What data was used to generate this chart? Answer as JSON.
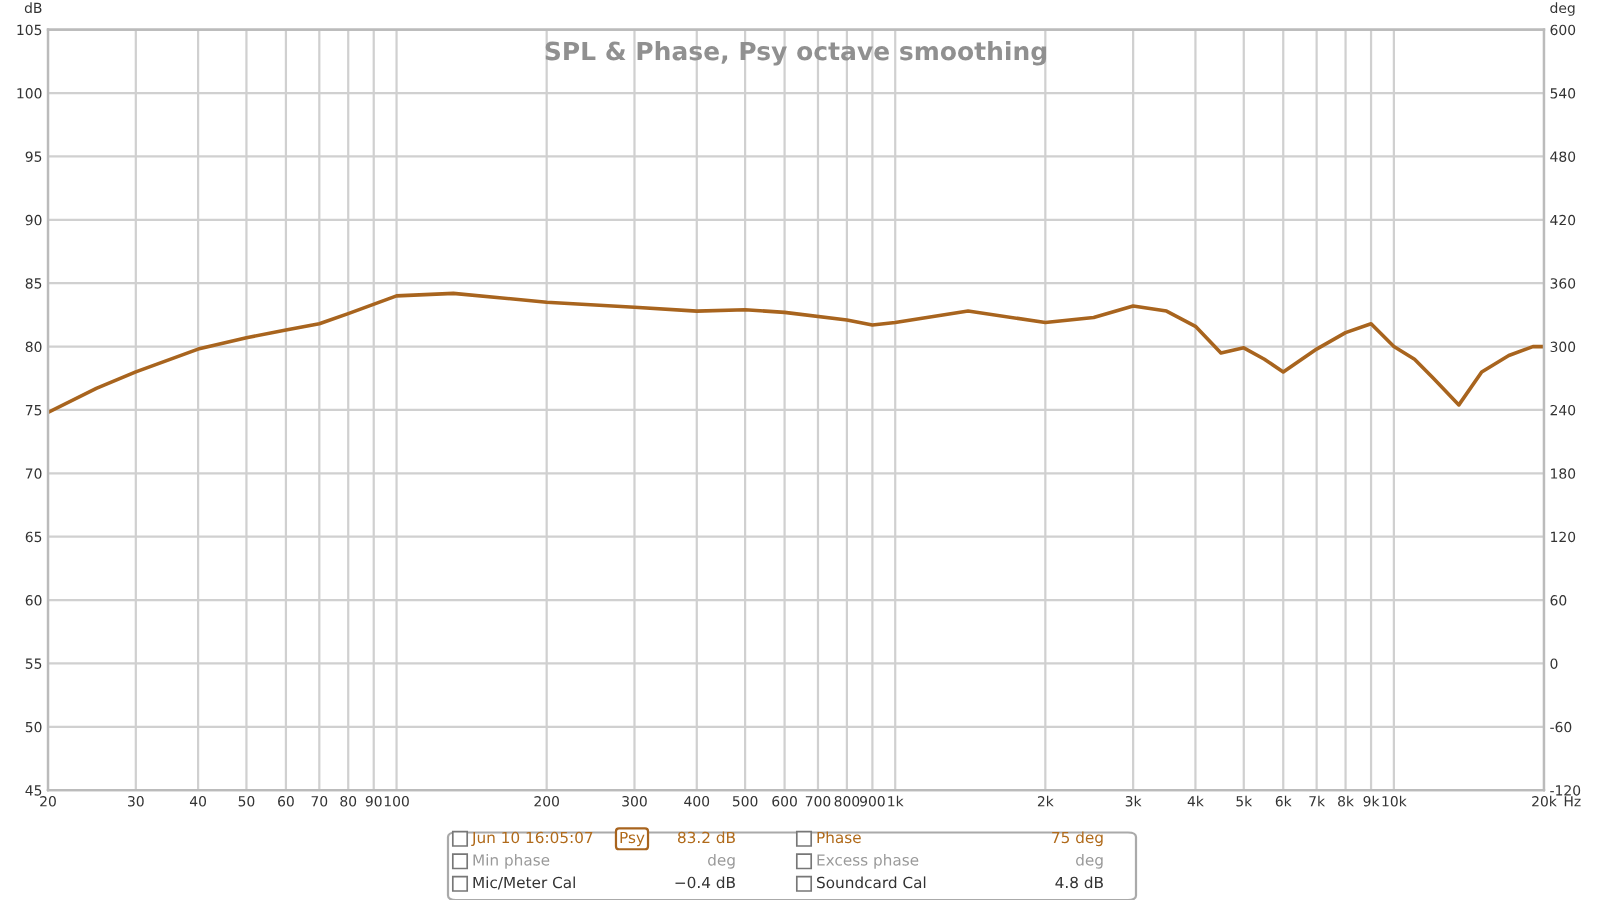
{
  "chart_data": {
    "type": "line",
    "title": "SPL & Phase, Psy octave smoothing",
    "ylabel": "dB",
    "y2label": "deg",
    "series": [
      {
        "color": "#a8641e",
        "x": [
          20,
          25,
          30,
          40,
          50,
          60,
          70,
          80,
          100,
          130,
          200,
          300,
          400,
          500,
          600,
          800,
          900,
          1000,
          1400,
          2000,
          2500,
          3000,
          3500,
          4000,
          4500,
          5000,
          5500,
          6000,
          7000,
          8000,
          9000,
          10000,
          11000,
          12000,
          13500,
          15000,
          17000,
          19000,
          20000
        ],
        "values": [
          74.8,
          76.7,
          78.0,
          79.8,
          80.7,
          81.3,
          81.8,
          82.6,
          84.0,
          84.2,
          83.5,
          83.1,
          82.8,
          82.9,
          82.7,
          82.1,
          81.7,
          81.9,
          82.8,
          81.9,
          82.3,
          83.2,
          82.8,
          81.6,
          79.5,
          79.9,
          79.0,
          78.0,
          79.8,
          81.1,
          81.8,
          80.0,
          79.0,
          77.5,
          75.4,
          78.0,
          79.3,
          80.0,
          80.0
        ]
      }
    ],
    "log": "x",
    "xlim": [
      20,
      20000
    ],
    "xticks": [
      20,
      30,
      40,
      50,
      60,
      70,
      80,
      90,
      100,
      200,
      300,
      400,
      500,
      600,
      700,
      800,
      900,
      {
        "value": 1000,
        "label": "1k"
      },
      {
        "value": 2000,
        "label": "2k"
      },
      {
        "value": 3000,
        "label": "3k"
      },
      {
        "value": 4000,
        "label": "4k"
      },
      {
        "value": 5000,
        "label": "5k"
      },
      {
        "value": 6000,
        "label": "6k"
      },
      {
        "value": 7000,
        "label": "7k"
      },
      {
        "value": 8000,
        "label": "8k"
      },
      {
        "value": 9000,
        "label": "9k"
      },
      {
        "value": 10000,
        "label": "10k"
      },
      {
        "value": 20000,
        "label": "20k"
      }
    ],
    "xlabel": "Hz",
    "ylim": [
      45,
      105
    ],
    "yticks": [
      45,
      50,
      55,
      60,
      65,
      70,
      75,
      80,
      85,
      90,
      95,
      100,
      105
    ],
    "y2lim": [
      -120,
      600
    ],
    "y2ticks": [
      -120,
      -60,
      0,
      60,
      120,
      180,
      240,
      300,
      360,
      420,
      480,
      540,
      600
    ],
    "grid": true,
    "line_style": "solid",
    "marker": "none",
    "annotations": [
      "Jun 10 16:05:07",
      "Psy",
      "83.2 dB",
      "Phase",
      "75 deg",
      "Min phase",
      "deg",
      "Excess phase",
      "deg",
      "Mic/Meter Cal",
      "−0.4 dB",
      "Soundcard Cal",
      "4.8 dB"
    ]
  }
}
